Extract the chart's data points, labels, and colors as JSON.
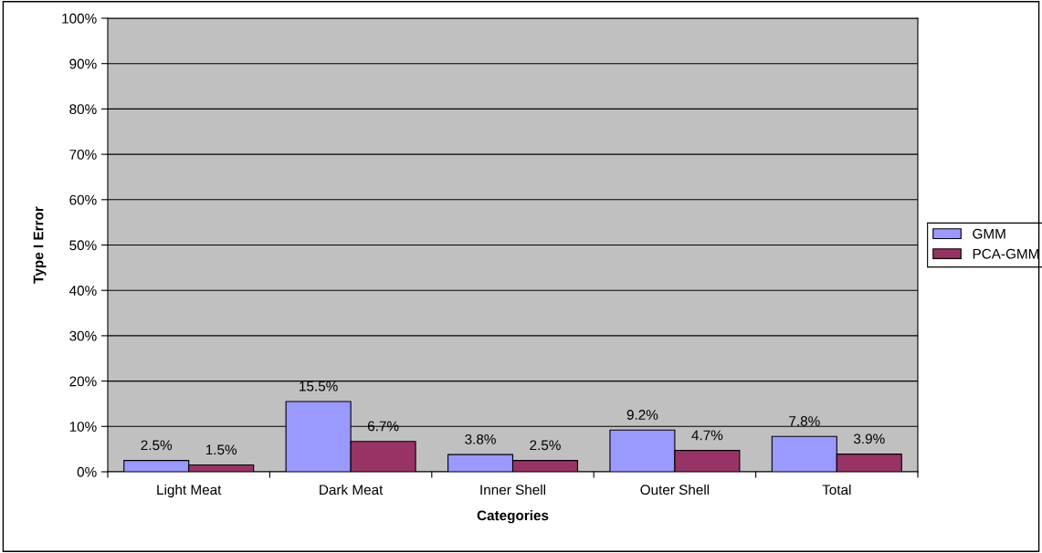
{
  "chart_data": {
    "type": "bar",
    "xlabel": "Categories",
    "ylabel": "Type I Error",
    "categories": [
      "Light Meat",
      "Dark Meat",
      "Inner Shell",
      "Outer Shell",
      "Total"
    ],
    "series": [
      {
        "name": "GMM",
        "color": "#9999ff",
        "values": [
          2.5,
          15.5,
          3.8,
          9.2,
          7.8
        ],
        "value_labels": [
          "2.5%",
          "15.5%",
          "3.8%",
          "9.2%",
          "7.8%"
        ]
      },
      {
        "name": "PCA-GMM",
        "color": "#993366",
        "values": [
          1.5,
          6.7,
          2.5,
          4.7,
          3.9
        ],
        "value_labels": [
          "1.5%",
          "6.7%",
          "2.5%",
          "4.7%",
          "3.9%"
        ]
      }
    ],
    "ylim": [
      0,
      100
    ],
    "yticks": [
      {
        "value": 0,
        "label": "0%"
      },
      {
        "value": 10,
        "label": "10%"
      },
      {
        "value": 20,
        "label": "20%"
      },
      {
        "value": 30,
        "label": "30%"
      },
      {
        "value": 40,
        "label": "40%"
      },
      {
        "value": 50,
        "label": "50%"
      },
      {
        "value": 60,
        "label": "60%"
      },
      {
        "value": 70,
        "label": "70%"
      },
      {
        "value": 80,
        "label": "80%"
      },
      {
        "value": 90,
        "label": "90%"
      },
      {
        "value": 100,
        "label": "100%"
      }
    ],
    "grid": "y",
    "legend": "right"
  }
}
